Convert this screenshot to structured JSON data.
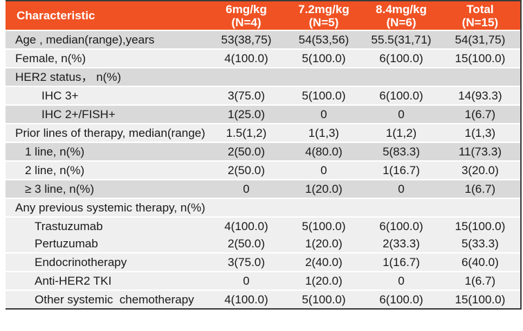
{
  "colors": {
    "header_bg": "#F05223",
    "header_text": "#FFFFFF",
    "row_dark": "#D9D9D9",
    "row_light": "#EFEFEF",
    "outer_border": "#3B3B3B",
    "body_text": "#1A1A1A"
  },
  "table": {
    "columns": [
      {
        "label": "Characteristic",
        "sub": ""
      },
      {
        "label": "6mg/kg",
        "sub": "(N=4)"
      },
      {
        "label": "7.2mg/kg",
        "sub": "(N=5)"
      },
      {
        "label": "8.4mg/kg",
        "sub": "(N=6)"
      },
      {
        "label": "Total",
        "sub": "(N=15)"
      }
    ],
    "rows": [
      {
        "label": "Age , median(range),years",
        "indent": 0,
        "shade": "dark",
        "tight": false,
        "values": [
          "53(38,75)",
          "54(53,56)",
          "55.5(31,71)",
          "54(31,75)"
        ]
      },
      {
        "label": "Female, n(%)",
        "indent": 0,
        "shade": "light",
        "tight": false,
        "values": [
          "4(100.0)",
          "5(100.0)",
          "6(100.0)",
          "15(100.0)"
        ]
      },
      {
        "label": "HER2 status， n(%)",
        "indent": 0,
        "shade": "dark",
        "tight": false,
        "values": [
          "",
          "",
          "",
          ""
        ]
      },
      {
        "label": "IHC 3+",
        "indent": 3,
        "shade": "light",
        "tight": false,
        "values": [
          "3(75.0)",
          "5(100.0)",
          "6(100.0)",
          "14(93.3)"
        ]
      },
      {
        "label": "IHC 2+/FISH+",
        "indent": 3,
        "shade": "dark",
        "tight": false,
        "values": [
          "1(25.0)",
          "0",
          "0",
          "1(6.7)"
        ]
      },
      {
        "label": "Prior lines of therapy, median(range)",
        "indent": 0,
        "shade": "light",
        "tight": false,
        "values": [
          "1.5(1,2)",
          "1(1,3)",
          "1(1,2)",
          "1(1,3)"
        ]
      },
      {
        "label": "1 line, n(%)",
        "indent": 1,
        "shade": "dark",
        "tight": false,
        "values": [
          "2(50.0)",
          "4(80.0)",
          "5(83.3)",
          "11(73.3)"
        ]
      },
      {
        "label": "2 line, n(%)",
        "indent": 1,
        "shade": "light",
        "tight": false,
        "values": [
          "2(50.0)",
          "0",
          "1(16.7)",
          "3(20.0)"
        ]
      },
      {
        "label": "≥ 3 line, n(%)",
        "indent": 1,
        "shade": "dark",
        "tight": false,
        "values": [
          "0",
          "1(20.0)",
          "0",
          "1(6.7)"
        ]
      },
      {
        "label": "Any previous systemic therapy, n(%)",
        "indent": 0,
        "shade": "light",
        "tight": false,
        "values": [
          "",
          "",
          "",
          ""
        ]
      },
      {
        "label": "Trastuzumab",
        "indent": 2,
        "shade": "light",
        "tight": false,
        "values": [
          "4(100.0)",
          "5(100.0)",
          "6(100.0)",
          "15(100.0)"
        ]
      },
      {
        "label": "Pertuzumab",
        "indent": 2,
        "shade": "light",
        "tight": true,
        "values": [
          "2(50.0)",
          "1(20.0)",
          "2(33.3)",
          "5(33.3)"
        ]
      },
      {
        "label": "Endocrinotherapy",
        "indent": 2,
        "shade": "light",
        "tight": false,
        "values": [
          "3(75.0)",
          "2(40.0)",
          "1(16.7)",
          "6(40.0)"
        ]
      },
      {
        "label": "Anti-HER2 TKI",
        "indent": 2,
        "shade": "light",
        "tight": false,
        "values": [
          "0",
          "1(20.0)",
          "0",
          "1(6.7)"
        ]
      },
      {
        "label": "Other systemic  chemotherapy",
        "indent": 2,
        "shade": "light",
        "tight": false,
        "values": [
          "4(100.0)",
          "5(100.0)",
          "6(100.0)",
          "15(100.0)"
        ]
      }
    ]
  }
}
